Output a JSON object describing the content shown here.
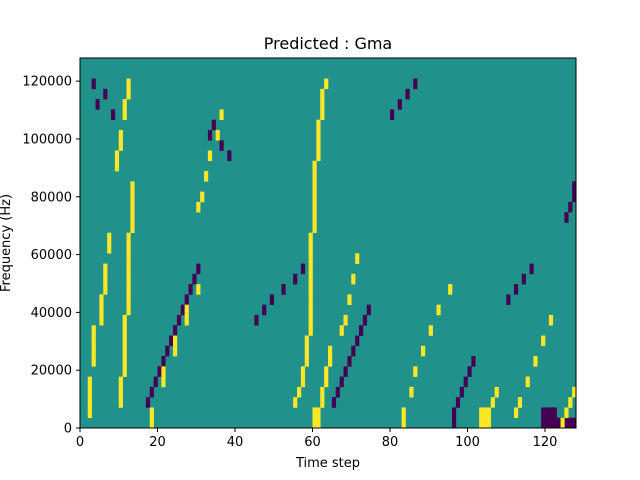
{
  "chart_data": {
    "type": "heatmap",
    "title": "Predicted : Gma",
    "xlabel": "Time step",
    "ylabel": "Frequency (Hz)",
    "xlim": [
      0,
      128
    ],
    "ylim": [
      0,
      128000
    ],
    "x_ticks": [
      0,
      20,
      40,
      60,
      80,
      100,
      120
    ],
    "x_tick_labels": [
      "0",
      "20",
      "40",
      "60",
      "80",
      "100",
      "120"
    ],
    "y_ticks": [
      0,
      20000,
      40000,
      60000,
      80000,
      100000,
      120000
    ],
    "y_tick_labels": [
      "0",
      "20000",
      "40000",
      "60000",
      "80000",
      "100000",
      "120000"
    ],
    "grid": false,
    "legend": "none",
    "colormap": "viridis",
    "colors": {
      "background_level": "#21918c",
      "high_level": "#fde725",
      "low_level": "#440154"
    },
    "note_cells_yellow": [
      [
        2,
        1
      ],
      [
        2,
        2
      ],
      [
        2,
        3
      ],
      [
        2,
        4
      ],
      [
        3,
        6
      ],
      [
        3,
        7
      ],
      [
        3,
        8
      ],
      [
        3,
        9
      ],
      [
        5,
        10
      ],
      [
        5,
        11
      ],
      [
        5,
        12
      ],
      [
        6,
        13
      ],
      [
        6,
        14
      ],
      [
        6,
        15
      ],
      [
        7,
        17
      ],
      [
        7,
        18
      ],
      [
        10,
        2
      ],
      [
        10,
        3
      ],
      [
        10,
        4
      ],
      [
        11,
        5
      ],
      [
        11,
        6
      ],
      [
        11,
        7
      ],
      [
        11,
        8
      ],
      [
        11,
        9
      ],
      [
        11,
        10
      ],
      [
        12,
        11
      ],
      [
        12,
        12
      ],
      [
        12,
        13
      ],
      [
        12,
        14
      ],
      [
        12,
        15
      ],
      [
        12,
        16
      ],
      [
        12,
        17
      ],
      [
        12,
        18
      ],
      [
        13,
        19
      ],
      [
        13,
        20
      ],
      [
        13,
        21
      ],
      [
        13,
        22
      ],
      [
        13,
        23
      ],
      [
        9,
        25
      ],
      [
        9,
        26
      ],
      [
        10,
        27
      ],
      [
        10,
        28
      ],
      [
        11,
        30
      ],
      [
        11,
        31
      ],
      [
        12,
        32
      ],
      [
        12,
        33
      ],
      [
        18,
        0
      ],
      [
        18,
        1
      ],
      [
        21,
        4
      ],
      [
        21,
        5
      ],
      [
        24,
        7
      ],
      [
        24,
        8
      ],
      [
        27,
        10
      ],
      [
        27,
        11
      ],
      [
        30,
        13
      ],
      [
        30,
        21
      ],
      [
        31,
        22
      ],
      [
        32,
        24
      ],
      [
        33,
        26
      ],
      [
        35,
        28
      ],
      [
        36,
        30
      ],
      [
        55,
        2
      ],
      [
        56,
        3
      ],
      [
        57,
        4
      ],
      [
        57,
        5
      ],
      [
        58,
        6
      ],
      [
        58,
        7
      ],
      [
        58,
        8
      ],
      [
        59,
        9
      ],
      [
        59,
        10
      ],
      [
        59,
        11
      ],
      [
        59,
        12
      ],
      [
        59,
        13
      ],
      [
        59,
        14
      ],
      [
        59,
        15
      ],
      [
        59,
        16
      ],
      [
        59,
        17
      ],
      [
        59,
        18
      ],
      [
        60,
        19
      ],
      [
        60,
        20
      ],
      [
        60,
        21
      ],
      [
        60,
        22
      ],
      [
        60,
        23
      ],
      [
        60,
        24
      ],
      [
        60,
        25
      ],
      [
        61,
        26
      ],
      [
        61,
        27
      ],
      [
        61,
        28
      ],
      [
        61,
        29
      ],
      [
        62,
        30
      ],
      [
        62,
        31
      ],
      [
        62,
        32
      ],
      [
        63,
        33
      ],
      [
        60,
        0
      ],
      [
        61,
        0
      ],
      [
        60,
        1
      ],
      [
        61,
        1
      ],
      [
        62,
        2
      ],
      [
        62,
        3
      ],
      [
        63,
        4
      ],
      [
        63,
        5
      ],
      [
        64,
        6
      ],
      [
        64,
        7
      ],
      [
        67,
        9
      ],
      [
        68,
        10
      ],
      [
        69,
        12
      ],
      [
        70,
        14
      ],
      [
        71,
        16
      ],
      [
        83,
        0
      ],
      [
        83,
        1
      ],
      [
        85,
        3
      ],
      [
        86,
        5
      ],
      [
        88,
        7
      ],
      [
        90,
        9
      ],
      [
        92,
        11
      ],
      [
        95,
        13
      ],
      [
        103,
        0
      ],
      [
        104,
        0
      ],
      [
        105,
        0
      ],
      [
        103,
        1
      ],
      [
        104,
        1
      ],
      [
        105,
        1
      ],
      [
        106,
        2
      ],
      [
        107,
        3
      ],
      [
        112,
        1
      ],
      [
        113,
        2
      ],
      [
        115,
        4
      ],
      [
        117,
        6
      ],
      [
        119,
        8
      ],
      [
        121,
        10
      ],
      [
        124,
        0
      ],
      [
        125,
        1
      ],
      [
        126,
        2
      ],
      [
        127,
        3
      ]
    ],
    "note_cells_purple": [
      [
        3,
        33
      ],
      [
        4,
        31
      ],
      [
        6,
        32
      ],
      [
        8,
        30
      ],
      [
        17,
        2
      ],
      [
        18,
        3
      ],
      [
        19,
        4
      ],
      [
        20,
        5
      ],
      [
        21,
        6
      ],
      [
        22,
        7
      ],
      [
        23,
        8
      ],
      [
        24,
        9
      ],
      [
        25,
        10
      ],
      [
        26,
        11
      ],
      [
        27,
        12
      ],
      [
        28,
        13
      ],
      [
        29,
        14
      ],
      [
        30,
        15
      ],
      [
        33,
        28
      ],
      [
        34,
        29
      ],
      [
        36,
        27
      ],
      [
        38,
        26
      ],
      [
        45,
        10
      ],
      [
        47,
        11
      ],
      [
        49,
        12
      ],
      [
        52,
        13
      ],
      [
        55,
        14
      ],
      [
        57,
        15
      ],
      [
        65,
        2
      ],
      [
        66,
        3
      ],
      [
        67,
        4
      ],
      [
        68,
        5
      ],
      [
        69,
        6
      ],
      [
        70,
        7
      ],
      [
        71,
        8
      ],
      [
        72,
        9
      ],
      [
        73,
        10
      ],
      [
        74,
        11
      ],
      [
        80,
        30
      ],
      [
        82,
        31
      ],
      [
        84,
        32
      ],
      [
        86,
        33
      ],
      [
        96,
        0
      ],
      [
        96,
        1
      ],
      [
        97,
        2
      ],
      [
        98,
        3
      ],
      [
        99,
        4
      ],
      [
        100,
        5
      ],
      [
        101,
        6
      ],
      [
        110,
        12
      ],
      [
        112,
        13
      ],
      [
        114,
        14
      ],
      [
        116,
        15
      ],
      [
        119,
        0
      ],
      [
        120,
        0
      ],
      [
        121,
        0
      ],
      [
        122,
        0
      ],
      [
        123,
        0
      ],
      [
        124,
        0
      ],
      [
        125,
        0
      ],
      [
        126,
        0
      ],
      [
        127,
        0
      ],
      [
        119,
        1
      ],
      [
        120,
        1
      ],
      [
        121,
        1
      ],
      [
        122,
        1
      ],
      [
        125,
        20
      ],
      [
        126,
        21
      ],
      [
        127,
        22
      ],
      [
        127,
        23
      ]
    ]
  }
}
